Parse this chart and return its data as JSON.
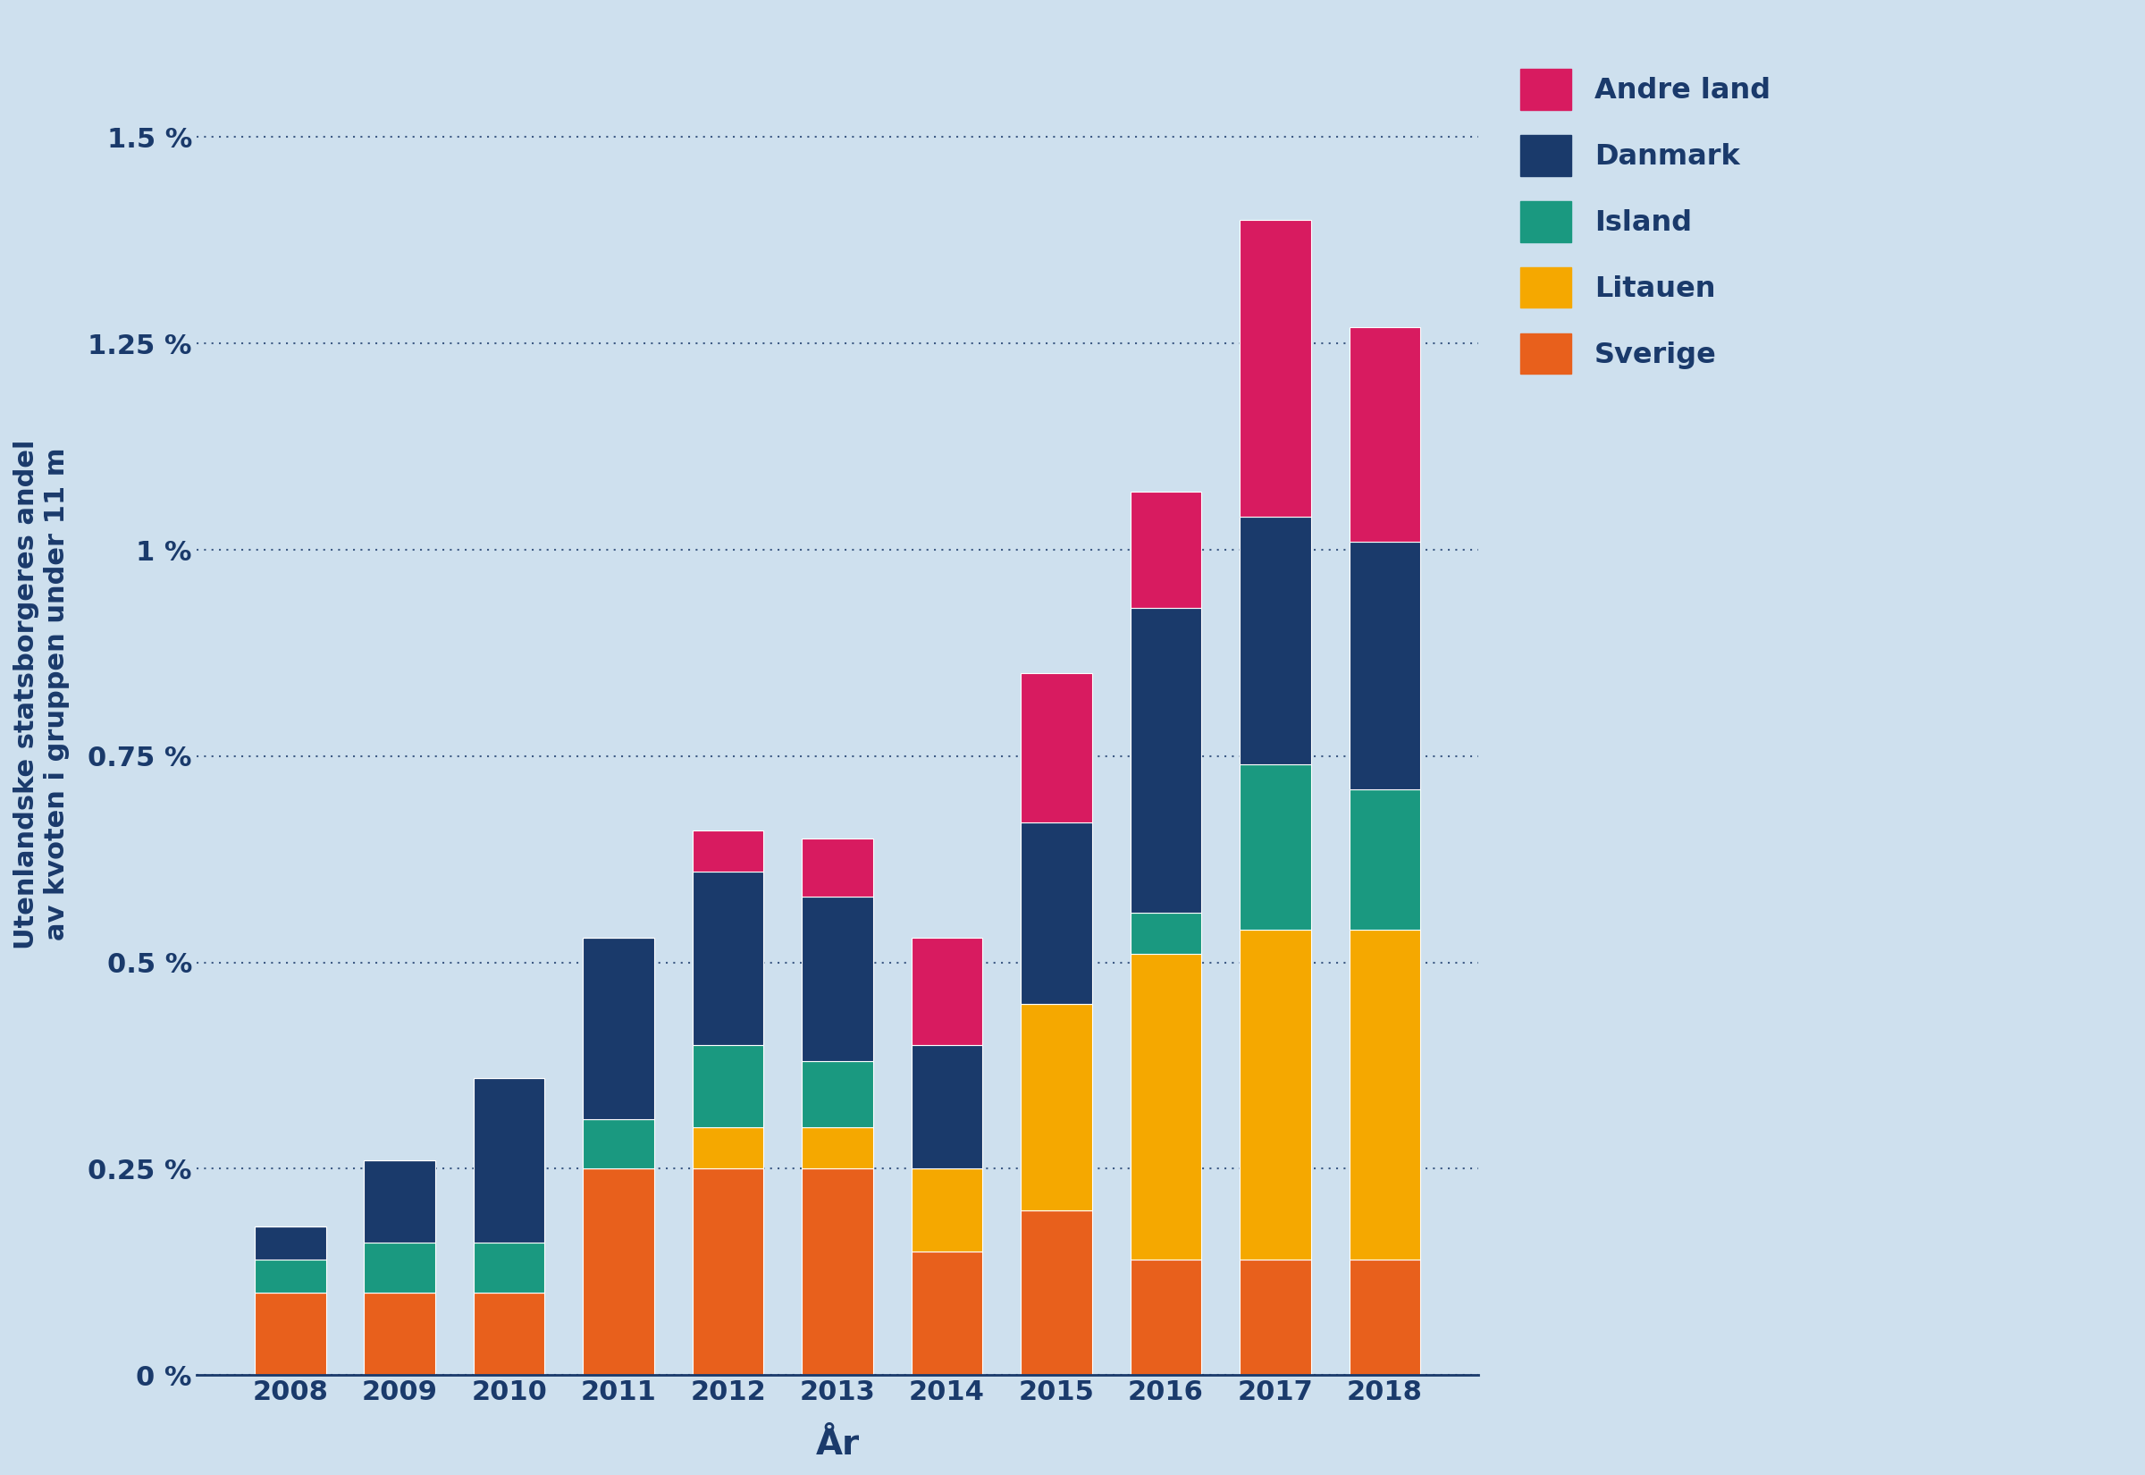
{
  "years": [
    2008,
    2009,
    2010,
    2011,
    2012,
    2013,
    2014,
    2015,
    2016,
    2017,
    2018
  ],
  "categories": [
    "Sverige",
    "Litauen",
    "Island",
    "Danmark",
    "Andre land"
  ],
  "colors": [
    "#E8601C",
    "#F5A800",
    "#1A9980",
    "#1A3A6B",
    "#D81B60"
  ],
  "data": {
    "Sverige": [
      0.1,
      0.1,
      0.1,
      0.25,
      0.25,
      0.25,
      0.15,
      0.2,
      0.14,
      0.14,
      0.14
    ],
    "Litauen": [
      0.0,
      0.0,
      0.0,
      0.0,
      0.05,
      0.05,
      0.1,
      0.25,
      0.37,
      0.4,
      0.4
    ],
    "Island": [
      0.04,
      0.06,
      0.06,
      0.06,
      0.1,
      0.08,
      0.0,
      0.0,
      0.05,
      0.2,
      0.17
    ],
    "Danmark": [
      0.04,
      0.1,
      0.2,
      0.22,
      0.21,
      0.2,
      0.15,
      0.22,
      0.37,
      0.3,
      0.3
    ],
    "Andre land": [
      0.0,
      0.0,
      0.0,
      0.0,
      0.05,
      0.07,
      0.13,
      0.18,
      0.14,
      0.36,
      0.26
    ]
  },
  "ylabel": "Utenlandske statsborgeres andel\nav kvoten i gruppen under 11 m",
  "xlabel": "År",
  "background_color": "#cee0ee",
  "plot_background_color": "#cee0ee",
  "yticks": [
    0.0,
    0.25,
    0.5,
    0.75,
    1.0,
    1.25,
    1.5
  ],
  "ytick_labels": [
    "0 %",
    "0.25 %",
    "0.5 %",
    "0.75 %",
    "1 %",
    "1.25 %",
    "1.5 %"
  ],
  "ylim": [
    0,
    1.65
  ],
  "text_color": "#1A3A6B",
  "bar_width": 0.65,
  "legend_labels": [
    "Andre land",
    "Danmark",
    "Island",
    "Litauen",
    "Sverige"
  ],
  "legend_colors": [
    "#D81B60",
    "#1A3A6B",
    "#1A9980",
    "#F5A800",
    "#E8601C"
  ]
}
